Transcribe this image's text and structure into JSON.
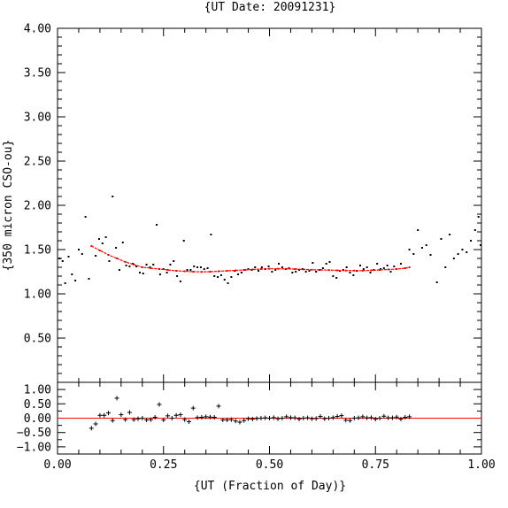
{
  "chart_data": {
    "type": "scatter",
    "title": "{UT Date: 20091231}",
    "xlabel": "{UT (Fraction of Day)}",
    "ylabel": "{350 micron CSO-ou}",
    "xlim": [
      0.0,
      1.0
    ],
    "x_ticks": [
      "0.00",
      "0.25",
      "0.50",
      "0.75",
      "1.00"
    ],
    "main_panel": {
      "ylim": [
        0.0,
        4.0
      ],
      "y_ticks": [
        "0.50",
        "1.00",
        "1.50",
        "2.00",
        "2.50",
        "3.00",
        "3.50",
        "4.00"
      ],
      "series": [
        {
          "type": "scatter",
          "color": "#000000",
          "points": [
            [
              0.005,
              1.4
            ],
            [
              0.012,
              1.37
            ],
            [
              0.018,
              1.12
            ],
            [
              0.026,
              1.42
            ],
            [
              0.034,
              1.22
            ],
            [
              0.042,
              1.15
            ],
            [
              0.05,
              1.5
            ],
            [
              0.058,
              1.45
            ],
            [
              0.066,
              1.87
            ],
            [
              0.074,
              1.17
            ],
            [
              0.09,
              1.43
            ],
            [
              0.098,
              1.62
            ],
            [
              0.106,
              1.57
            ],
            [
              0.114,
              1.64
            ],
            [
              0.122,
              1.37
            ],
            [
              0.13,
              2.1
            ],
            [
              0.138,
              1.52
            ],
            [
              0.146,
              1.27
            ],
            [
              0.154,
              1.58
            ],
            [
              0.162,
              1.32
            ],
            [
              0.17,
              1.31
            ],
            [
              0.178,
              1.34
            ],
            [
              0.186,
              1.31
            ],
            [
              0.194,
              1.24
            ],
            [
              0.202,
              1.23
            ],
            [
              0.21,
              1.33
            ],
            [
              0.218,
              1.3
            ],
            [
              0.226,
              1.33
            ],
            [
              0.234,
              1.78
            ],
            [
              0.242,
              1.22
            ],
            [
              0.25,
              1.28
            ],
            [
              0.258,
              1.24
            ],
            [
              0.266,
              1.33
            ],
            [
              0.274,
              1.37
            ],
            [
              0.282,
              1.2
            ],
            [
              0.29,
              1.14
            ],
            [
              0.298,
              1.6
            ],
            [
              0.306,
              1.27
            ],
            [
              0.314,
              1.27
            ],
            [
              0.322,
              1.31
            ],
            [
              0.33,
              1.3
            ],
            [
              0.338,
              1.3
            ],
            [
              0.346,
              1.28
            ],
            [
              0.354,
              1.29
            ],
            [
              0.362,
              1.67
            ],
            [
              0.37,
              1.2
            ],
            [
              0.378,
              1.19
            ],
            [
              0.386,
              1.21
            ],
            [
              0.394,
              1.16
            ],
            [
              0.402,
              1.12
            ],
            [
              0.41,
              1.19
            ],
            [
              0.418,
              1.26
            ],
            [
              0.426,
              1.22
            ],
            [
              0.434,
              1.24
            ],
            [
              0.442,
              1.27
            ],
            [
              0.45,
              1.28
            ],
            [
              0.458,
              1.27
            ],
            [
              0.466,
              1.3
            ],
            [
              0.474,
              1.26
            ],
            [
              0.482,
              1.3
            ],
            [
              0.49,
              1.28
            ],
            [
              0.498,
              1.31
            ],
            [
              0.506,
              1.25
            ],
            [
              0.514,
              1.27
            ],
            [
              0.522,
              1.34
            ],
            [
              0.53,
              1.3
            ],
            [
              0.538,
              1.28
            ],
            [
              0.546,
              1.29
            ],
            [
              0.554,
              1.24
            ],
            [
              0.562,
              1.25
            ],
            [
              0.57,
              1.27
            ],
            [
              0.578,
              1.28
            ],
            [
              0.586,
              1.25
            ],
            [
              0.594,
              1.26
            ],
            [
              0.602,
              1.35
            ],
            [
              0.61,
              1.25
            ],
            [
              0.618,
              1.27
            ],
            [
              0.626,
              1.29
            ],
            [
              0.634,
              1.34
            ],
            [
              0.642,
              1.36
            ],
            [
              0.65,
              1.2
            ],
            [
              0.658,
              1.18
            ],
            [
              0.666,
              1.26
            ],
            [
              0.674,
              1.27
            ],
            [
              0.682,
              1.3
            ],
            [
              0.69,
              1.24
            ],
            [
              0.698,
              1.21
            ],
            [
              0.706,
              1.26
            ],
            [
              0.714,
              1.32
            ],
            [
              0.722,
              1.28
            ],
            [
              0.73,
              1.3
            ],
            [
              0.738,
              1.24
            ],
            [
              0.746,
              1.27
            ],
            [
              0.754,
              1.34
            ],
            [
              0.762,
              1.28
            ],
            [
              0.77,
              1.29
            ],
            [
              0.778,
              1.32
            ],
            [
              0.786,
              1.25
            ],
            [
              0.794,
              1.31
            ],
            [
              0.81,
              1.34
            ],
            [
              0.83,
              1.5
            ],
            [
              0.84,
              1.45
            ],
            [
              0.85,
              1.72
            ],
            [
              0.86,
              1.52
            ],
            [
              0.87,
              1.55
            ],
            [
              0.88,
              1.44
            ],
            [
              0.895,
              1.13
            ],
            [
              0.905,
              1.62
            ],
            [
              0.915,
              1.3
            ],
            [
              0.925,
              1.67
            ],
            [
              0.935,
              1.4
            ],
            [
              0.945,
              1.45
            ],
            [
              0.955,
              1.5
            ],
            [
              0.965,
              1.47
            ],
            [
              0.975,
              1.6
            ],
            [
              0.985,
              1.72
            ],
            [
              0.993,
              1.87
            ],
            [
              0.998,
              1.55
            ]
          ]
        },
        {
          "type": "line",
          "color": "#ff0000",
          "points": [
            [
              0.08,
              1.54
            ],
            [
              0.1,
              1.49
            ],
            [
              0.12,
              1.44
            ],
            [
              0.14,
              1.4
            ],
            [
              0.16,
              1.36
            ],
            [
              0.18,
              1.33
            ],
            [
              0.2,
              1.3
            ],
            [
              0.22,
              1.29
            ],
            [
              0.24,
              1.28
            ],
            [
              0.26,
              1.27
            ],
            [
              0.28,
              1.26
            ],
            [
              0.3,
              1.255
            ],
            [
              0.32,
              1.25
            ],
            [
              0.34,
              1.248
            ],
            [
              0.36,
              1.25
            ],
            [
              0.38,
              1.255
            ],
            [
              0.4,
              1.26
            ],
            [
              0.42,
              1.265
            ],
            [
              0.44,
              1.27
            ],
            [
              0.46,
              1.275
            ],
            [
              0.48,
              1.28
            ],
            [
              0.5,
              1.283
            ],
            [
              0.52,
              1.283
            ],
            [
              0.54,
              1.282
            ],
            [
              0.56,
              1.28
            ],
            [
              0.58,
              1.276
            ],
            [
              0.6,
              1.272
            ],
            [
              0.62,
              1.27
            ],
            [
              0.64,
              1.268
            ],
            [
              0.66,
              1.265
            ],
            [
              0.68,
              1.263
            ],
            [
              0.7,
              1.262
            ],
            [
              0.72,
              1.262
            ],
            [
              0.74,
              1.265
            ],
            [
              0.76,
              1.27
            ],
            [
              0.78,
              1.275
            ],
            [
              0.8,
              1.28
            ],
            [
              0.82,
              1.29
            ],
            [
              0.83,
              1.3
            ]
          ]
        }
      ]
    },
    "residual_panel": {
      "ylim": [
        -1.25,
        1.25
      ],
      "y_ticks": [
        "−1.00",
        "−0.50",
        "0.00",
        "0.50",
        "1.00"
      ],
      "zero_line_color": "#ff0000",
      "marker": "+",
      "points": [
        [
          0.08,
          -0.35
        ],
        [
          0.09,
          -0.2
        ],
        [
          0.1,
          0.1
        ],
        [
          0.11,
          0.1
        ],
        [
          0.12,
          0.18
        ],
        [
          0.13,
          -0.08
        ],
        [
          0.14,
          0.7
        ],
        [
          0.15,
          0.12
        ],
        [
          0.16,
          -0.05
        ],
        [
          0.17,
          0.2
        ],
        [
          0.18,
          -0.05
        ],
        [
          0.19,
          -0.02
        ],
        [
          0.2,
          0.0
        ],
        [
          0.21,
          -0.06
        ],
        [
          0.22,
          -0.05
        ],
        [
          0.23,
          0.03
        ],
        [
          0.24,
          0.48
        ],
        [
          0.25,
          -0.06
        ],
        [
          0.26,
          0.08
        ],
        [
          0.27,
          0.0
        ],
        [
          0.28,
          0.1
        ],
        [
          0.29,
          0.12
        ],
        [
          0.3,
          -0.05
        ],
        [
          0.31,
          -0.12
        ],
        [
          0.32,
          0.35
        ],
        [
          0.33,
          0.02
        ],
        [
          0.34,
          0.03
        ],
        [
          0.35,
          0.05
        ],
        [
          0.36,
          0.04
        ],
        [
          0.37,
          0.03
        ],
        [
          0.38,
          0.42
        ],
        [
          0.39,
          -0.06
        ],
        [
          0.4,
          -0.06
        ],
        [
          0.41,
          -0.05
        ],
        [
          0.42,
          -0.1
        ],
        [
          0.43,
          -0.14
        ],
        [
          0.44,
          -0.08
        ],
        [
          0.45,
          -0.02
        ],
        [
          0.46,
          -0.03
        ],
        [
          0.47,
          -0.01
        ],
        [
          0.48,
          0.0
        ],
        [
          0.49,
          0.01
        ],
        [
          0.5,
          0.0
        ],
        [
          0.51,
          0.02
        ],
        [
          0.52,
          -0.02
        ],
        [
          0.53,
          0.0
        ],
        [
          0.54,
          0.05
        ],
        [
          0.55,
          0.02
        ],
        [
          0.56,
          0.01
        ],
        [
          0.57,
          -0.03
        ],
        [
          0.58,
          0.0
        ],
        [
          0.59,
          0.01
        ],
        [
          0.6,
          -0.02
        ],
        [
          0.61,
          -0.01
        ],
        [
          0.62,
          0.06
        ],
        [
          0.63,
          -0.02
        ],
        [
          0.64,
          0.0
        ],
        [
          0.65,
          0.02
        ],
        [
          0.66,
          0.06
        ],
        [
          0.67,
          0.09
        ],
        [
          0.68,
          -0.07
        ],
        [
          0.69,
          -0.08
        ],
        [
          0.7,
          0.0
        ],
        [
          0.71,
          0.01
        ],
        [
          0.72,
          0.05
        ],
        [
          0.73,
          0.01
        ],
        [
          0.74,
          0.02
        ],
        [
          0.75,
          -0.03
        ],
        [
          0.76,
          0.0
        ],
        [
          0.77,
          0.07
        ],
        [
          0.78,
          0.01
        ],
        [
          0.79,
          0.01
        ],
        [
          0.8,
          0.04
        ],
        [
          0.81,
          -0.03
        ],
        [
          0.82,
          0.03
        ],
        [
          0.83,
          0.05
        ]
      ]
    }
  }
}
